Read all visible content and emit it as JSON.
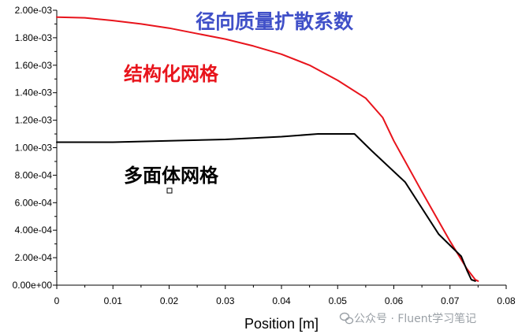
{
  "chart_data": {
    "type": "line",
    "title": "径向质量扩散系数",
    "title_color": "#4050c8",
    "xlabel": "Position [m]",
    "ylabel": "",
    "xlim": [
      0,
      0.08
    ],
    "ylim": [
      0,
      0.002
    ],
    "x_ticks": [
      0,
      0.01,
      0.02,
      0.03,
      0.04,
      0.05,
      0.06,
      0.07,
      0.08
    ],
    "x_tick_labels": [
      "0",
      "0.01",
      "0.02",
      "0.03",
      "0.04",
      "0.05",
      "0.06",
      "0.07",
      "0.08"
    ],
    "y_ticks": [
      0,
      0.0002,
      0.0004,
      0.0006,
      0.0008,
      0.001,
      0.0012,
      0.0014,
      0.0016,
      0.0018,
      0.002
    ],
    "y_tick_labels": [
      "0.00e+00",
      "2.00e-04",
      "4.00e-04",
      "6.00e-04",
      "8.00e-04",
      "1.00e-03",
      "1.20e-03",
      "1.40e-03",
      "1.60e-03",
      "1.80e-03",
      "2.00e-03"
    ],
    "grid": false,
    "series": [
      {
        "name": "结构化网格",
        "color": "#e8141c",
        "x": [
          0,
          0.005,
          0.01,
          0.015,
          0.02,
          0.025,
          0.03,
          0.035,
          0.04,
          0.045,
          0.05,
          0.055,
          0.058,
          0.06,
          0.065,
          0.07,
          0.073,
          0.0745,
          0.075
        ],
        "y": [
          0.00195,
          0.001945,
          0.001925,
          0.0019,
          0.00187,
          0.00183,
          0.00179,
          0.00174,
          0.00168,
          0.0016,
          0.00149,
          0.00136,
          0.00122,
          0.00105,
          0.00068,
          0.00032,
          0.00012,
          4e-05,
          3e-05
        ]
      },
      {
        "name": "多面体网格",
        "color": "#000000",
        "x": [
          0,
          0.01,
          0.02,
          0.03,
          0.04,
          0.0465,
          0.053,
          0.056,
          0.062,
          0.068,
          0.072,
          0.073,
          0.0738,
          0.0745
        ],
        "y": [
          0.00104,
          0.00104,
          0.00105,
          0.00106,
          0.00108,
          0.0011,
          0.0011,
          0.00098,
          0.00075,
          0.00037,
          0.00021,
          0.00011,
          4e-05,
          3e-05
        ]
      }
    ]
  },
  "annotations": {
    "structured_label": "结构化网格",
    "polyhedral_label": "多面体网格"
  },
  "watermark": {
    "text": "公众号 · Fluent学习笔记",
    "icon": "wechat-icon"
  }
}
